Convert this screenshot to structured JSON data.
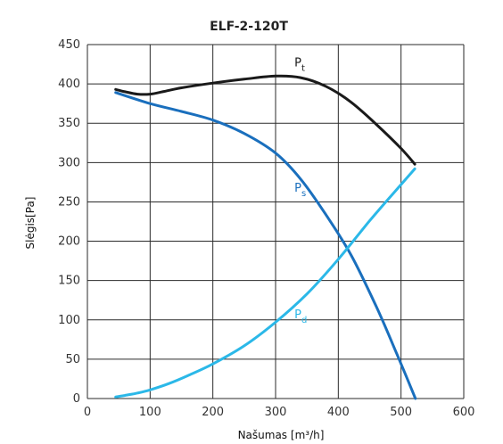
{
  "chart_data": {
    "type": "line",
    "title": "ELF-2-120T",
    "xlabel": "Našumas",
    "xunit": "[m³/h]",
    "ylabel": "Slėgis",
    "yunit": "[Pa]",
    "xlim": [
      0,
      600
    ],
    "ylim": [
      0,
      450
    ],
    "xticks": [
      "0",
      "100",
      "200",
      "300",
      "400",
      "500",
      "600"
    ],
    "yticks": [
      "0",
      "50",
      "100",
      "150",
      "200",
      "250",
      "300",
      "350",
      "400",
      "450"
    ],
    "grid": true,
    "series": [
      {
        "name": "Pt",
        "label_main": "P",
        "label_sub": "t",
        "color": "#1a1a1a",
        "x": [
          45,
          60,
          80,
          100,
          120,
          150,
          200,
          250,
          300,
          340,
          380,
          420,
          460,
          500,
          522
        ],
        "y": [
          393,
          390,
          387,
          387,
          390,
          395,
          401,
          406,
          410,
          408,
          397,
          377,
          349,
          318,
          298
        ]
      },
      {
        "name": "Ps",
        "label_main": "P",
        "label_sub": "s",
        "color": "#1a6fbd",
        "x": [
          45,
          100,
          150,
          200,
          250,
          300,
          340,
          380,
          420,
          460,
          490,
          510,
          523
        ],
        "y": [
          389,
          375,
          365,
          354,
          337,
          312,
          279,
          234,
          183,
          118,
          63,
          25,
          0
        ]
      },
      {
        "name": "Pd",
        "label_main": "P",
        "label_sub": "d",
        "color": "#2bb8e8",
        "x": [
          45,
          60,
          80,
          100,
          130,
          160,
          200,
          250,
          300,
          350,
          400,
          450,
          500,
          522
        ],
        "y": [
          2,
          4,
          7,
          11,
          19,
          29,
          44,
          67,
          97,
          133,
          177,
          226,
          272,
          292
        ]
      }
    ]
  }
}
